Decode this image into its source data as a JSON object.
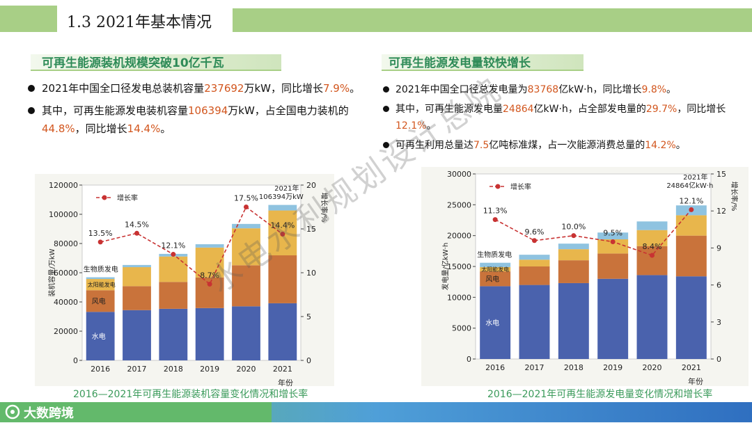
{
  "header": {
    "title": "1.3 2021年基本情况"
  },
  "left": {
    "title": "可再生能源装机规模突破10亿千瓦",
    "bullets": [
      {
        "p1": "2021年中国全口径发电总装机容量",
        "v1": "237692",
        "p2": "万kW，同比增长",
        "v2": "7.9%",
        "p3": "。"
      },
      {
        "p1": "其中，可再生能源发电装机容量",
        "v1": "106394",
        "p2": "万kW，占全国电力装机的",
        "v2": "44.8%",
        "p3": "，同比增长",
        "v3": "14.4%",
        "p4": "。"
      }
    ],
    "caption": "2016—2021年可再生能源装机容量变化情况和增长率"
  },
  "right": {
    "title": "可再生能源发电量较快增长",
    "bullets": [
      {
        "p1": "2021年中国全口径总发电量为",
        "v1": "83768",
        "p2": "亿kW·h，同比增长",
        "v2": "9.8%",
        "p3": "。"
      },
      {
        "p1": "其中，可再生能源发电量",
        "v1": "24864",
        "p2": "亿kW·h，占全部发电量的",
        "v2": "29.7%",
        "p3": "，同比增长",
        "v3": "12.1%",
        "p4": "。"
      },
      {
        "p1": "可再生利用总量达",
        "v1": "7.5",
        "p2": "亿吨标准煤，占一次能源消费总量的",
        "v2": "14.2%",
        "p3": "。"
      }
    ],
    "caption": "2016—2021年可再生能源发电量变化情况和增长率"
  },
  "watermark": "水电水利规划设计总院",
  "footer": {
    "logo": "大数跨境"
  },
  "colors": {
    "hydro": "#4a62ad",
    "wind": "#c9733b",
    "solar": "#e8b64c",
    "bio": "#8fc3e0",
    "rate": "#c83232",
    "green": "#2e8b57"
  },
  "chart_data": [
    {
      "type": "bar",
      "stacked": true,
      "categories": [
        "2016",
        "2017",
        "2018",
        "2019",
        "2020",
        "2021"
      ],
      "xlabel": "年份",
      "ylabel": "装机容量/万kW",
      "y2label": "增长率/%",
      "ylim": [
        0,
        120000
      ],
      "yticks": [
        0,
        20000,
        40000,
        60000,
        80000,
        100000,
        120000
      ],
      "y2lim": [
        0,
        20
      ],
      "y2ticks": [
        0,
        5,
        10,
        15,
        20
      ],
      "series": [
        {
          "name": "水电",
          "values": [
            33200,
            34400,
            35300,
            35800,
            37000,
            39100
          ]
        },
        {
          "name": "风电",
          "values": [
            14800,
            16400,
            18400,
            21000,
            28100,
            32800
          ]
        },
        {
          "name": "太阳能发电",
          "values": [
            7700,
            13000,
            17400,
            20400,
            25300,
            30700
          ]
        },
        {
          "name": "生物质发电",
          "values": [
            1200,
            1500,
            1800,
            2300,
            3000,
            3800
          ]
        }
      ],
      "rate": {
        "name": "增长率",
        "values": [
          13.5,
          14.5,
          12.1,
          8.7,
          17.5,
          14.4
        ],
        "labels": [
          "13.5%",
          "14.5%",
          "12.1%",
          "8.7%",
          "17.5%",
          "14.4%"
        ]
      },
      "annotation": {
        "line1": "2021年",
        "line2": "106394万kW"
      }
    },
    {
      "type": "bar",
      "stacked": true,
      "categories": [
        "2016",
        "2017",
        "2018",
        "2019",
        "2020",
        "2021"
      ],
      "xlabel": "年份",
      "ylabel": "发电量/亿kW·h",
      "y2label": "增长率/%",
      "ylim": [
        0,
        30000
      ],
      "yticks": [
        0,
        5000,
        10000,
        15000,
        20000,
        25000,
        30000
      ],
      "y2lim": [
        0,
        15
      ],
      "y2ticks": [
        0,
        3,
        6,
        9,
        12,
        15
      ],
      "series": [
        {
          "name": "水电",
          "values": [
            11800,
            12000,
            12300,
            13000,
            13600,
            13400
          ]
        },
        {
          "name": "风电",
          "values": [
            2400,
            3000,
            3700,
            4100,
            4700,
            6600
          ]
        },
        {
          "name": "太阳能发电",
          "values": [
            700,
            1100,
            1800,
            2300,
            2600,
            3300
          ]
        },
        {
          "name": "生物质发电",
          "values": [
            700,
            800,
            900,
            1100,
            1400,
            1600
          ]
        }
      ],
      "rate": {
        "name": "增长率",
        "values": [
          11.3,
          9.6,
          10.0,
          9.5,
          8.4,
          12.1
        ],
        "labels": [
          "11.3%",
          "9.6%",
          "10.0%",
          "9.5%",
          "8.4%",
          "12.1%"
        ]
      },
      "annotation": {
        "line1": "2021年",
        "line2": "24864亿kW·h"
      }
    }
  ]
}
